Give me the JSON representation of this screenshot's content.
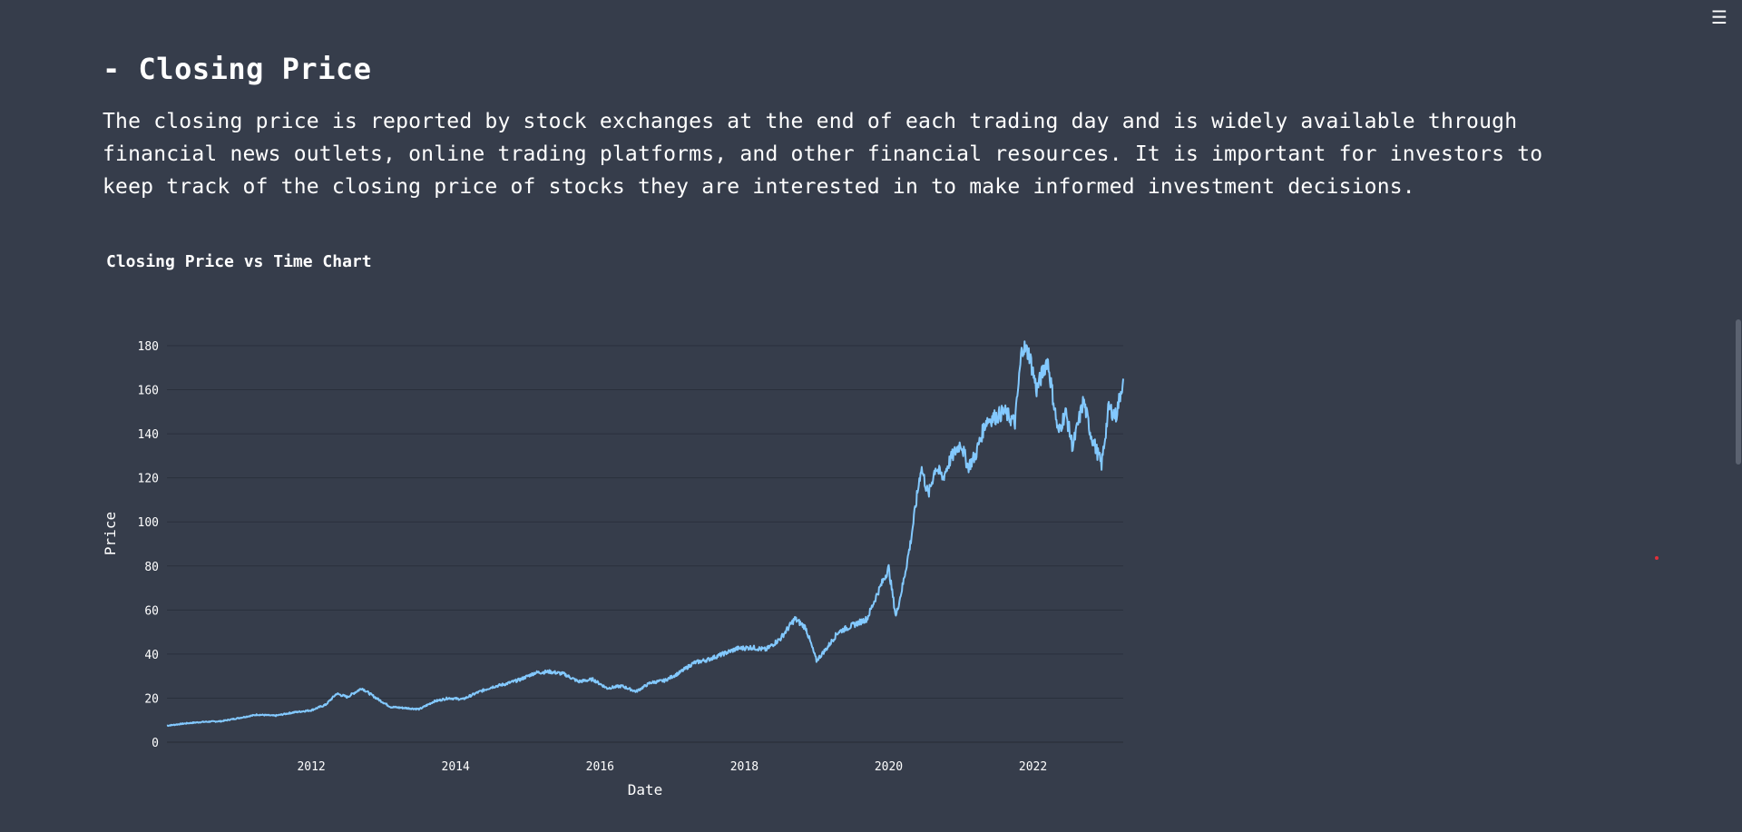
{
  "header": {
    "menu_icon": "hamburger-menu-icon"
  },
  "section": {
    "heading": "- Closing Price",
    "description": "The closing price is reported by stock exchanges at the end of each trading day and is widely available through financial news outlets, online trading platforms, and other financial resources. It is important for investors to keep track of the closing price of stocks they are interested in to make informed investment decisions."
  },
  "colors": {
    "background": "#363d4b",
    "line": "#83c9ff",
    "grid": "#2a303c",
    "text": "#ffffff"
  },
  "chart_data": {
    "type": "line",
    "title": "Closing Price vs Time Chart",
    "xlabel": "Date",
    "ylabel": "Price",
    "xlim": [
      2010.0,
      2023.25
    ],
    "ylim": [
      0,
      182
    ],
    "x_ticks": [
      "2012",
      "2014",
      "2016",
      "2018",
      "2020",
      "2022"
    ],
    "y_ticks": [
      0,
      20,
      40,
      60,
      80,
      100,
      120,
      140,
      160,
      180
    ],
    "grid": true,
    "series": [
      {
        "x": [
          2010.0,
          2010.25,
          2010.5,
          2010.75,
          2011.0,
          2011.25,
          2011.5,
          2011.75,
          2012.0,
          2012.2,
          2012.35,
          2012.5,
          2012.7,
          2012.9,
          2013.1,
          2013.3,
          2013.5,
          2013.7,
          2013.9,
          2014.1,
          2014.3,
          2014.5,
          2014.7,
          2014.9,
          2015.1,
          2015.3,
          2015.5,
          2015.7,
          2015.9,
          2016.1,
          2016.3,
          2016.5,
          2016.7,
          2016.9,
          2017.1,
          2017.3,
          2017.5,
          2017.7,
          2017.9,
          2018.1,
          2018.3,
          2018.5,
          2018.7,
          2018.85,
          2019.0,
          2019.15,
          2019.3,
          2019.5,
          2019.7,
          2019.85,
          2020.0,
          2020.1,
          2020.2,
          2020.3,
          2020.45,
          2020.55,
          2020.65,
          2020.75,
          2020.85,
          2021.0,
          2021.1,
          2021.2,
          2021.35,
          2021.5,
          2021.6,
          2021.75,
          2021.85,
          2021.95,
          2022.05,
          2022.2,
          2022.35,
          2022.45,
          2022.55,
          2022.7,
          2022.8,
          2022.95,
          2023.05,
          2023.15,
          2023.25
        ],
        "y": [
          7.5,
          8.5,
          9.2,
          9.5,
          11.0,
          12.5,
          12.0,
          13.5,
          14.5,
          17.0,
          22.0,
          20.5,
          24.5,
          20.0,
          16.0,
          15.5,
          15.0,
          18.5,
          20.0,
          19.5,
          22.5,
          25.0,
          26.5,
          28.5,
          31.5,
          32.0,
          31.0,
          27.5,
          28.5,
          24.5,
          25.5,
          23.0,
          27.0,
          28.0,
          31.5,
          36.0,
          37.5,
          40.0,
          42.5,
          43.0,
          42.0,
          47.0,
          56.0,
          52.0,
          37.0,
          43.0,
          50.0,
          53.0,
          56.0,
          68.0,
          79.0,
          57.0,
          72.0,
          90.0,
          125.0,
          112.0,
          125.0,
          120.0,
          128.0,
          136.0,
          125.0,
          130.0,
          146.0,
          148.0,
          150.0,
          145.0,
          180.0,
          176.0,
          160.0,
          174.0,
          140.0,
          150.0,
          134.0,
          155.0,
          140.0,
          126.0,
          152.0,
          148.0,
          165.0
        ]
      }
    ]
  }
}
